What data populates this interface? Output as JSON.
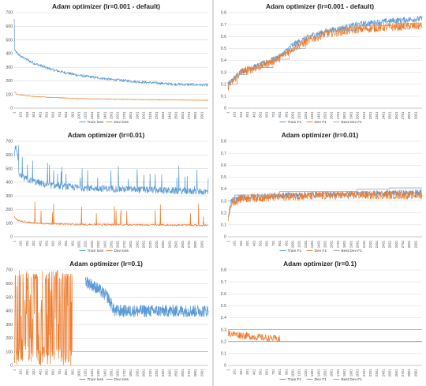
{
  "colors": {
    "blue": "#5b9bd5",
    "orange": "#ed7d31",
    "gray": "#a5a5a5",
    "grid": "#d9d9d9"
  },
  "chart_data": [
    {
      "type": "line",
      "title": "Adam optimizer (lr=0.001 - default)",
      "ylim": [
        0,
        700
      ],
      "yticks": [
        "0",
        "100",
        "200",
        "300",
        "400",
        "500",
        "600",
        "700"
      ],
      "x_tick_labels": [
        "1",
        "101",
        "201",
        "301",
        "401",
        "501",
        "601",
        "701",
        "801",
        "901",
        "1001",
        "1101",
        "1201",
        "1301",
        "1401",
        "1501",
        "1601",
        "1701",
        "1801",
        "1901",
        "2001",
        "2101",
        "2201",
        "2301",
        "2401",
        "2501",
        "2601",
        "2701",
        "2801",
        "2901"
      ],
      "x_range": [
        1,
        3000
      ],
      "grid": "horizontal",
      "legend_position": "bottom",
      "series": [
        {
          "name": "Train loss",
          "color": "#5b9bd5",
          "noise": 10,
          "spikes": 0,
          "points": [
            [
              1,
              650
            ],
            [
              10,
              420
            ],
            [
              100,
              380
            ],
            [
              300,
              330
            ],
            [
              600,
              280
            ],
            [
              1000,
              240
            ],
            [
              1500,
              210
            ],
            [
              2000,
              190
            ],
            [
              2500,
              175
            ],
            [
              3000,
              170
            ]
          ]
        },
        {
          "name": "Dev loss",
          "color": "#ed7d31",
          "noise": 2,
          "spikes": 0,
          "points": [
            [
              1,
              120
            ],
            [
              50,
              100
            ],
            [
              300,
              85
            ],
            [
              1000,
              70
            ],
            [
              2000,
              62
            ],
            [
              3000,
              58
            ]
          ]
        }
      ]
    },
    {
      "type": "line",
      "title": "Adam optimizer (lr=0.001 - default)",
      "ylim": [
        0,
        0.8
      ],
      "yticks": [
        "0",
        "0.1",
        "0.2",
        "0.3",
        "0.4",
        "0.5",
        "0.6",
        "0.7",
        "0.8"
      ],
      "x_tick_labels": [
        "1",
        "101",
        "201",
        "301",
        "401",
        "501",
        "601",
        "701",
        "801",
        "901",
        "1001",
        "1101",
        "1201",
        "1301",
        "1401",
        "1501",
        "1601",
        "1701",
        "1801",
        "1901",
        "2001",
        "2101",
        "2201",
        "2301",
        "2401",
        "2501",
        "2601",
        "2701",
        "2801",
        "2901"
      ],
      "x_range": [
        1,
        3000
      ],
      "grid": "horizontal",
      "legend_position": "bottom",
      "series": [
        {
          "name": "Train F1",
          "color": "#5b9bd5",
          "noise": 0.025,
          "spikes": 0,
          "points": [
            [
              1,
              0.2
            ],
            [
              100,
              0.25
            ],
            [
              200,
              0.31
            ],
            [
              500,
              0.36
            ],
            [
              800,
              0.43
            ],
            [
              1000,
              0.53
            ],
            [
              1300,
              0.61
            ],
            [
              1500,
              0.64
            ],
            [
              2000,
              0.7
            ],
            [
              2500,
              0.73
            ],
            [
              3000,
              0.75
            ]
          ]
        },
        {
          "name": "Dev F1",
          "color": "#ed7d31",
          "noise": 0.035,
          "spikes": 0,
          "points": [
            [
              1,
              0.18
            ],
            [
              100,
              0.24
            ],
            [
              200,
              0.3
            ],
            [
              500,
              0.35
            ],
            [
              800,
              0.42
            ],
            [
              1000,
              0.5
            ],
            [
              1300,
              0.58
            ],
            [
              1500,
              0.62
            ],
            [
              2000,
              0.66
            ],
            [
              2500,
              0.68
            ],
            [
              3000,
              0.69
            ]
          ]
        },
        {
          "name": "Best Dev F1",
          "color": "#a5a5a5",
          "noise": 0,
          "spikes": 0,
          "step": true,
          "points": [
            [
              1,
              0.2
            ],
            [
              150,
              0.28
            ],
            [
              300,
              0.34
            ],
            [
              700,
              0.41
            ],
            [
              950,
              0.5
            ],
            [
              1200,
              0.6
            ],
            [
              1500,
              0.65
            ],
            [
              2000,
              0.69
            ],
            [
              2600,
              0.71
            ],
            [
              3000,
              0.71
            ]
          ]
        }
      ]
    },
    {
      "type": "line",
      "title": "Adam optimizer (lr=0.01)",
      "ylim": [
        0,
        700
      ],
      "yticks": [
        "0",
        "100",
        "200",
        "300",
        "400",
        "500",
        "600",
        "700"
      ],
      "x_tick_labels": [
        "1",
        "101",
        "201",
        "301",
        "401",
        "501",
        "601",
        "701",
        "801",
        "901",
        "1001",
        "1101",
        "1201",
        "1301",
        "1401",
        "1501",
        "1601",
        "1701",
        "1801",
        "1901",
        "2001",
        "2101",
        "2201",
        "2301",
        "2401",
        "2501",
        "2601",
        "2701",
        "2801",
        "2901"
      ],
      "x_range": [
        1,
        3000
      ],
      "grid": "horizontal",
      "legend_position": "bottom",
      "series": [
        {
          "name": "Train loss",
          "color": "#5b9bd5",
          "noise": 25,
          "spikes": 0.06,
          "points": [
            [
              1,
              600
            ],
            [
              30,
              680
            ],
            [
              80,
              450
            ],
            [
              200,
              420
            ],
            [
              500,
              380
            ],
            [
              1000,
              360
            ],
            [
              2000,
              345
            ],
            [
              3000,
              330
            ]
          ]
        },
        {
          "name": "Dev loss",
          "color": "#ed7d31",
          "noise": 6,
          "spikes": 0.02,
          "points": [
            [
              1,
              150
            ],
            [
              50,
              120
            ],
            [
              300,
              100
            ],
            [
              1000,
              90
            ],
            [
              3000,
              85
            ]
          ]
        }
      ]
    },
    {
      "type": "line",
      "title": "Adam optimizer (lr=0.01)",
      "ylim": [
        0,
        0.8
      ],
      "yticks": [
        "0",
        "0.1",
        "0.2",
        "0.3",
        "0.4",
        "0.5",
        "0.6",
        "0.7",
        "0.8"
      ],
      "x_tick_labels": [
        "1",
        "101",
        "201",
        "301",
        "401",
        "501",
        "601",
        "701",
        "801",
        "901",
        "1001",
        "1101",
        "1201",
        "1301",
        "1401",
        "1501",
        "1601",
        "1701",
        "1801",
        "1901",
        "2001",
        "2101",
        "2201",
        "2301",
        "2401",
        "2501",
        "2601",
        "2701",
        "2801",
        "2901"
      ],
      "x_range": [
        1,
        3000
      ],
      "grid": "horizontal",
      "legend_position": "bottom",
      "series": [
        {
          "name": "Train F1",
          "color": "#5b9bd5",
          "noise": 0.025,
          "spikes": 0,
          "points": [
            [
              1,
              0.15
            ],
            [
              50,
              0.3
            ],
            [
              200,
              0.33
            ],
            [
              1000,
              0.35
            ],
            [
              2000,
              0.36
            ],
            [
              3000,
              0.37
            ]
          ]
        },
        {
          "name": "Dev F1",
          "color": "#ed7d31",
          "noise": 0.035,
          "spikes": 0,
          "points": [
            [
              1,
              0.12
            ],
            [
              50,
              0.28
            ],
            [
              200,
              0.32
            ],
            [
              1000,
              0.34
            ],
            [
              2000,
              0.35
            ],
            [
              3000,
              0.35
            ]
          ]
        },
        {
          "name": "Best Dev F1",
          "color": "#a5a5a5",
          "noise": 0,
          "spikes": 0,
          "step": true,
          "points": [
            [
              1,
              0.3
            ],
            [
              100,
              0.35
            ],
            [
              800,
              0.38
            ],
            [
              2000,
              0.4
            ],
            [
              2500,
              0.41
            ],
            [
              3000,
              0.41
            ]
          ]
        }
      ]
    },
    {
      "type": "line",
      "title": "Adam optimizer (lr=0.1)",
      "ylim": [
        0,
        700
      ],
      "yticks": [
        "0",
        "100",
        "200",
        "300",
        "400",
        "500",
        "600",
        "700"
      ],
      "x_tick_labels": [
        "1",
        "101",
        "201",
        "301",
        "401",
        "501",
        "601",
        "701",
        "801",
        "901",
        "1001",
        "1101",
        "1201",
        "1301",
        "1401",
        "1501",
        "1601",
        "1701",
        "1801",
        "1901",
        "2001",
        "2101",
        "2201",
        "2301",
        "2401",
        "2501",
        "2601",
        "2701",
        "2801",
        "2901"
      ],
      "x_range": [
        1,
        3000
      ],
      "grid": "horizontal",
      "legend_position": "bottom",
      "series": [
        {
          "name": "Train loss",
          "color": "#5b9bd5",
          "noise": 45,
          "spikes": 0,
          "segment": [
            1100,
            3000
          ],
          "points": [
            [
              1100,
              620
            ],
            [
              1300,
              560
            ],
            [
              1450,
              500
            ],
            [
              1500,
              450
            ],
            [
              1550,
              400
            ],
            [
              3000,
              400
            ]
          ]
        },
        {
          "name": "Dev loss",
          "color": "#ed7d31",
          "noise": 0,
          "spikes": 0,
          "chaotic": [
            1,
            900
          ],
          "points": [
            [
              1,
              300
            ],
            [
              900,
              100
            ],
            [
              901,
              100
            ],
            [
              3000,
              100
            ]
          ]
        }
      ]
    },
    {
      "type": "line",
      "title": "Adam optimizer (lr=0.1)",
      "ylim": [
        0,
        0.8
      ],
      "yticks": [
        "0",
        "0.1",
        "0.2",
        "0.3",
        "0.4",
        "0.5",
        "0.6",
        "0.7",
        "0.8"
      ],
      "x_tick_labels": [
        "1",
        "101",
        "201",
        "301",
        "401",
        "501",
        "601",
        "701",
        "801",
        "901",
        "1001",
        "1101",
        "1201",
        "1301",
        "1401",
        "1501",
        "1601",
        "1701",
        "1801",
        "1901",
        "2001",
        "2101",
        "2201",
        "2301",
        "2401",
        "2501",
        "2601",
        "2701",
        "2801",
        "2901"
      ],
      "x_range": [
        1,
        3000
      ],
      "grid": "horizontal",
      "legend_position": "bottom",
      "series": [
        {
          "name": "Train F1",
          "color": "#5b9bd5",
          "noise": 0,
          "spikes": 0,
          "points": [
            [
              1,
              0.2
            ],
            [
              3000,
              0.2
            ]
          ]
        },
        {
          "name": "Dev F1",
          "color": "#ed7d31",
          "noise": 0.03,
          "spikes": 0,
          "noisy_until": 800,
          "points": [
            [
              1,
              0.27
            ],
            [
              400,
              0.24
            ],
            [
              800,
              0.22
            ],
            [
              801,
              0.2
            ],
            [
              3000,
              0.2
            ]
          ]
        },
        {
          "name": "Best Dev F1",
          "color": "#a5a5a5",
          "noise": 0,
          "spikes": 0,
          "step": true,
          "points": [
            [
              1,
              0.3
            ],
            [
              3000,
              0.3
            ]
          ]
        }
      ]
    }
  ]
}
